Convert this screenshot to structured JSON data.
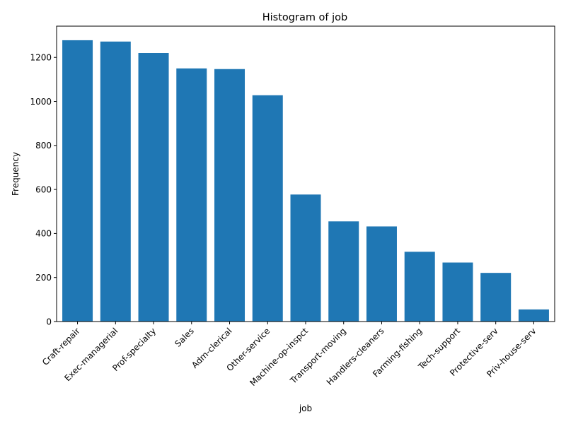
{
  "chart_data": {
    "type": "bar",
    "title": "Histogram of job",
    "xlabel": "job",
    "ylabel": "Frequency",
    "categories": [
      "Craft-repair",
      "Exec-managerial",
      "Prof-specialty",
      "Sales",
      "Adm-clerical",
      "Other-service",
      "Machine-op-inspct",
      "Transport-moving",
      "Handlers-cleaners",
      "Farming-fishing",
      "Tech-support",
      "Protective-serv",
      "Priv-house-serv"
    ],
    "values": [
      1278,
      1272,
      1220,
      1150,
      1147,
      1028,
      577,
      455,
      432,
      317,
      268,
      221,
      55
    ],
    "ylim": [
      0,
      1342
    ],
    "yticks": [
      0,
      200,
      400,
      600,
      800,
      1000,
      1200
    ],
    "bar_color": "#1f77b4",
    "grid": false,
    "legend": "none"
  }
}
